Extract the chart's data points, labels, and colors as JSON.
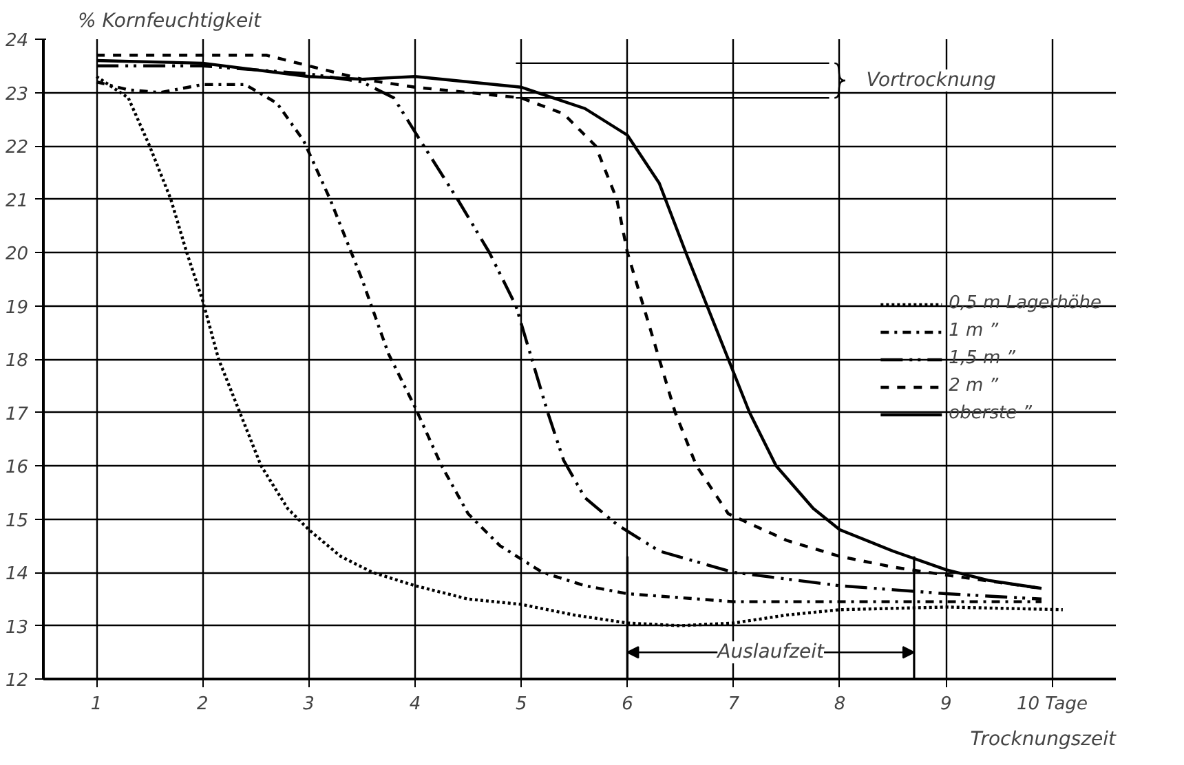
{
  "chart_data": {
    "type": "line",
    "ylabel": "% Kornfeuchtigkeit",
    "xlabel": "Trocknungszeit",
    "xlim": [
      0.5,
      10.6
    ],
    "ylim": [
      12,
      24
    ],
    "xticks": [
      1,
      2,
      3,
      4,
      5,
      6,
      7,
      8,
      9,
      {
        "value": 10,
        "label": "10 Tage"
      }
    ],
    "yticks": [
      12,
      13,
      14,
      15,
      16,
      17,
      18,
      19,
      20,
      21,
      22,
      23,
      24
    ],
    "grid": true,
    "legend": "right",
    "marker": "none",
    "series": [
      {
        "name": "0,5 m Lagerhöhe",
        "color": "#000000",
        "line_style": "dotted",
        "x": [
          1,
          1.3,
          1.5,
          1.7,
          1.85,
          2,
          2.15,
          2.35,
          2.55,
          2.8,
          3,
          3.3,
          3.6,
          4,
          4.5,
          5,
          5.5,
          6,
          6.5,
          7,
          7.5,
          8,
          9,
          10.1
        ],
        "values": [
          23.3,
          22.9,
          22,
          21,
          20,
          19.1,
          18,
          17,
          16,
          15.2,
          14.8,
          14.3,
          14,
          13.75,
          13.5,
          13.4,
          13.2,
          13.05,
          13,
          13.05,
          13.2,
          13.3,
          13.35,
          13.3
        ]
      },
      {
        "name": "1 m ”",
        "color": "#000000",
        "line_style": "dashdot",
        "x": [
          1,
          1.3,
          1.6,
          2,
          2.4,
          2.7,
          2.95,
          3.2,
          3.5,
          3.75,
          4,
          4.25,
          4.5,
          4.8,
          5.2,
          5.6,
          6,
          7,
          8,
          9,
          9.9
        ],
        "values": [
          23.2,
          23.05,
          23,
          23.15,
          23.15,
          22.8,
          22.1,
          21,
          19.5,
          18.1,
          17.1,
          16,
          15.1,
          14.5,
          14,
          13.75,
          13.6,
          13.45,
          13.45,
          13.45,
          13.45
        ]
      },
      {
        "name": "1,5 m ”",
        "color": "#000000",
        "line_style": "dashdotdot",
        "x": [
          1,
          2,
          3,
          3.5,
          3.8,
          4.05,
          4.4,
          4.7,
          4.95,
          5.1,
          5.25,
          5.4,
          5.6,
          5.9,
          6.3,
          7,
          8,
          9,
          9.9
        ],
        "values": [
          23.5,
          23.5,
          23.35,
          23.2,
          22.9,
          22.1,
          21,
          20,
          19,
          18,
          17,
          16.1,
          15.4,
          14.9,
          14.4,
          14,
          13.75,
          13.6,
          13.5
        ]
      },
      {
        "name": "2 m ”",
        "color": "#000000",
        "line_style": "dashed",
        "x": [
          1,
          2,
          2.6,
          3,
          3.5,
          4,
          5,
          5.4,
          5.7,
          5.9,
          6,
          6.15,
          6.3,
          6.45,
          6.65,
          6.95,
          7.5,
          8,
          8.5,
          9,
          9.9
        ],
        "values": [
          23.7,
          23.7,
          23.7,
          23.5,
          23.25,
          23.1,
          22.9,
          22.6,
          22,
          21,
          20,
          19,
          18,
          17,
          16,
          15.1,
          14.6,
          14.3,
          14.1,
          13.95,
          13.7
        ]
      },
      {
        "name": "oberste ”",
        "color": "#000000",
        "line_style": "solid",
        "x": [
          1,
          2,
          3,
          3.5,
          4,
          5,
          5.6,
          6,
          6.3,
          6.55,
          6.75,
          6.95,
          7.15,
          7.4,
          7.75,
          8,
          8.5,
          9,
          9.4,
          9.9
        ],
        "values": [
          23.6,
          23.55,
          23.3,
          23.25,
          23.3,
          23.1,
          22.7,
          22.2,
          21.3,
          20,
          19,
          18,
          17,
          16,
          15.2,
          14.8,
          14.4,
          14.05,
          13.85,
          13.7
        ]
      }
    ],
    "ref_lines": [
      {
        "axis": "y",
        "value": 23.55,
        "label": "Vortrocknung"
      },
      {
        "axis": "y",
        "value": 22.9
      },
      {
        "axis": "x",
        "value": 6
      },
      {
        "axis": "x",
        "value": 8.7,
        "label": "Auslaufzeit"
      }
    ]
  }
}
